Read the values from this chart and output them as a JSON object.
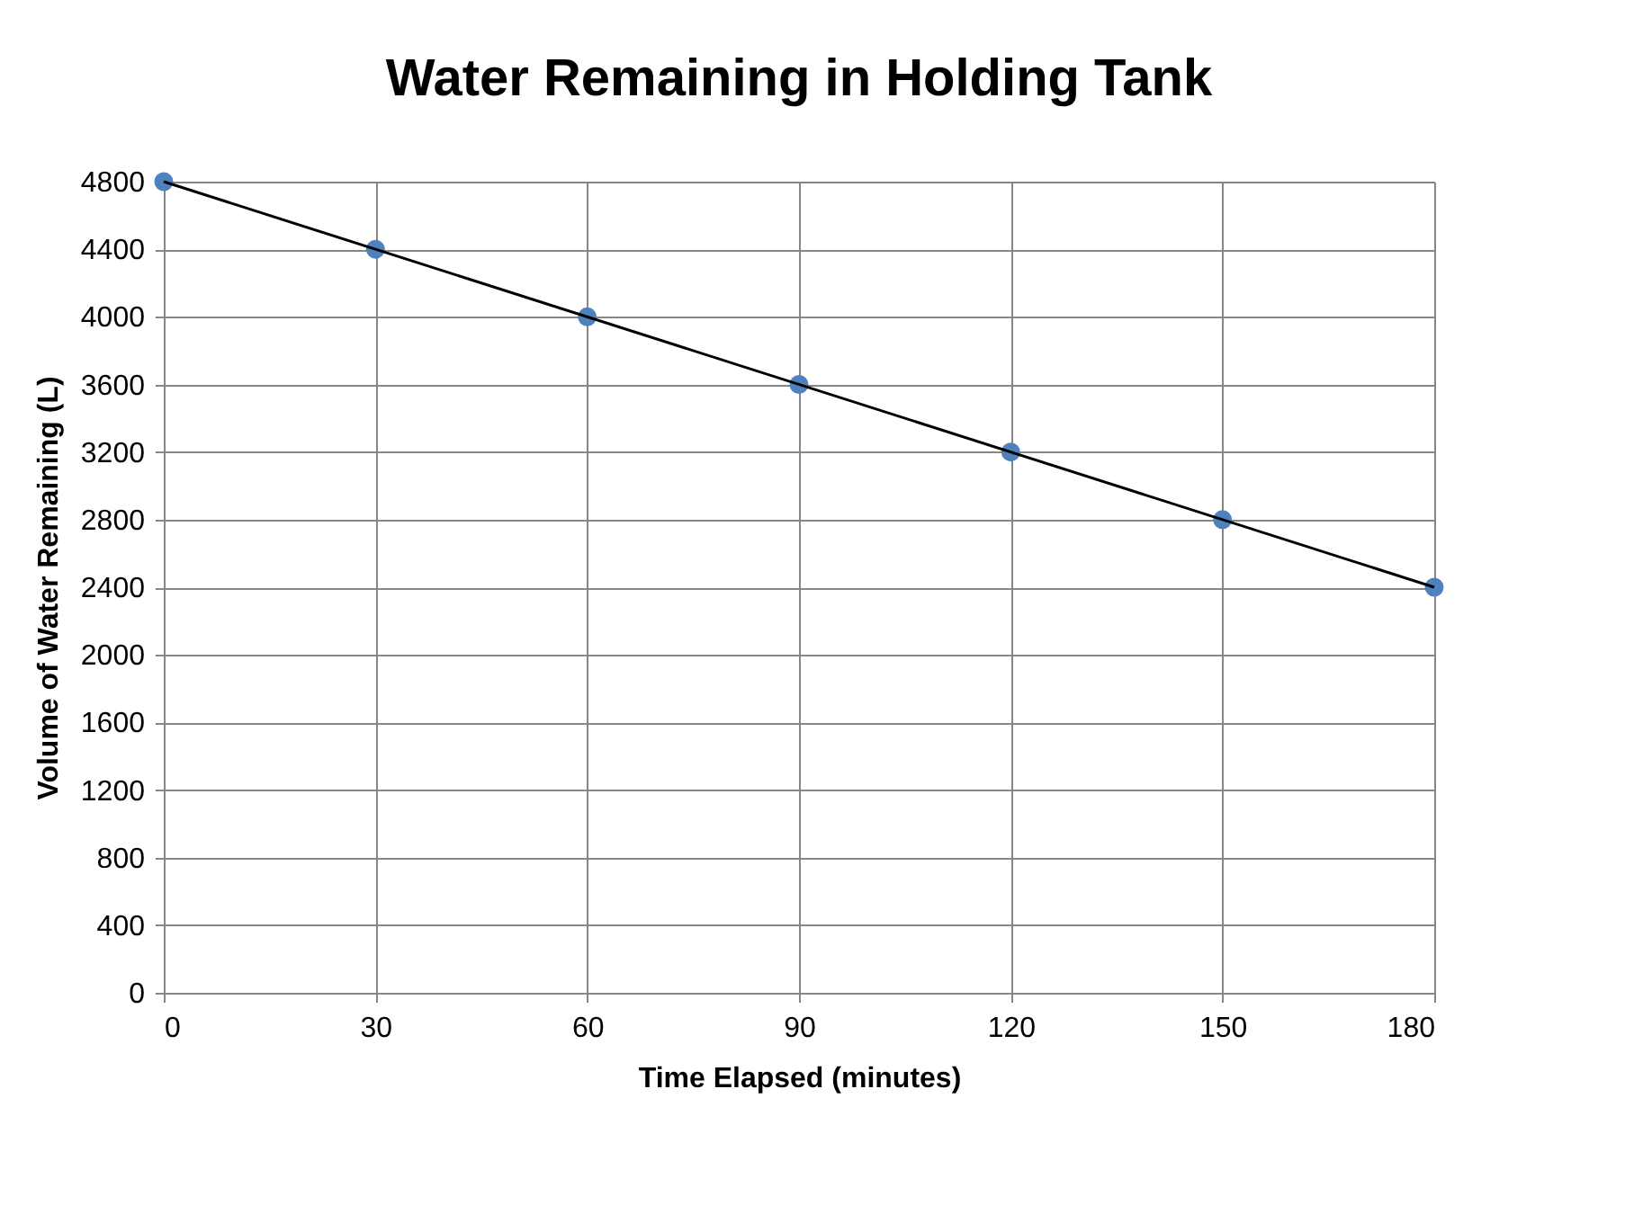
{
  "chart_data": {
    "type": "scatter",
    "title": "Water Remaining in Holding Tank",
    "xlabel": "Time Elapsed (minutes)",
    "ylabel": "Volume of Water Remaining (L)",
    "x": [
      0,
      30,
      60,
      90,
      120,
      150,
      180
    ],
    "series": [
      {
        "type": "scatter",
        "color": "#4f81bd",
        "values": [
          4800,
          4400,
          4000,
          3600,
          3200,
          2800,
          2400
        ]
      },
      {
        "type": "line",
        "color": "#000000",
        "x": [
          0,
          180
        ],
        "values": [
          4800,
          2400
        ],
        "marker": "none"
      }
    ],
    "xlim": [
      0,
      180
    ],
    "xticks": [
      0,
      30,
      60,
      90,
      120,
      150,
      180
    ],
    "ylim": [
      0,
      4800
    ],
    "yticks": [
      0,
      400,
      800,
      1200,
      1600,
      2000,
      2400,
      2800,
      3200,
      3600,
      4000,
      4400,
      4800
    ],
    "grid": true,
    "marker": "circle"
  }
}
